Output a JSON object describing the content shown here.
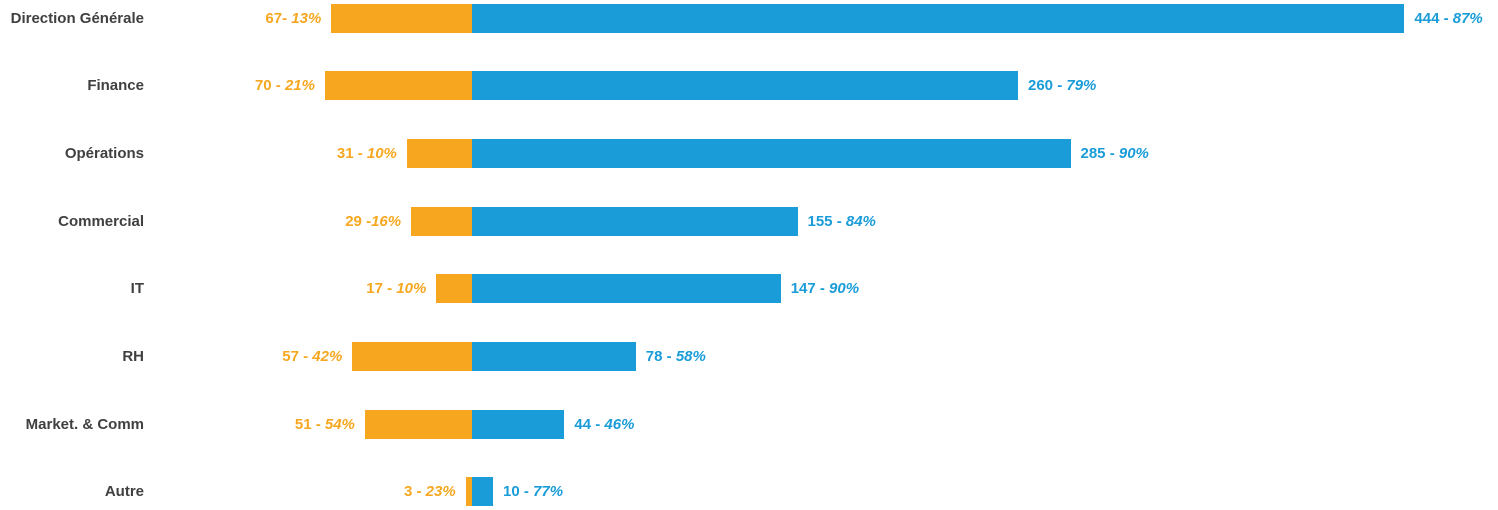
{
  "colors": {
    "left_series": "#F6A71F",
    "right_series": "#1A9CD8",
    "category_text": "#404040",
    "background": "#FFFFFF"
  },
  "chart_data": {
    "type": "bar",
    "orientation": "horizontal-diverging-stacked",
    "title": "",
    "xlabel": "",
    "ylabel": "",
    "legend": "none",
    "axis_labels_visible": false,
    "gridlines": false,
    "categories": [
      "Direction Générale",
      "Finance",
      "Opérations",
      "Commercial",
      "IT",
      "RH",
      "Market. & Comm",
      "Autre"
    ],
    "series": [
      {
        "name": "left-orange-segment",
        "values": [
          67,
          70,
          31,
          29,
          17,
          57,
          51,
          3
        ],
        "percents": [
          "13%",
          "21%",
          "10%",
          "16%",
          "10%",
          "42%",
          "54%",
          "23%"
        ]
      },
      {
        "name": "right-blue-segment",
        "values": [
          444,
          260,
          285,
          155,
          147,
          78,
          44,
          10
        ],
        "percents": [
          "87%",
          "79%",
          "90%",
          "84%",
          "90%",
          "58%",
          "46%",
          "77%"
        ]
      }
    ],
    "rows": [
      {
        "category": "Direction Générale",
        "left": {
          "value": 67,
          "num": "67- ",
          "pct": "13%"
        },
        "right": {
          "value": 444,
          "num": "444 - ",
          "pct": "87%"
        }
      },
      {
        "category": "Finance",
        "left": {
          "value": 70,
          "num": "70 - ",
          "pct": "21%"
        },
        "right": {
          "value": 260,
          "num": "260 - ",
          "pct": "79%"
        }
      },
      {
        "category": "Opérations",
        "left": {
          "value": 31,
          "num": "31 - ",
          "pct": "10%"
        },
        "right": {
          "value": 285,
          "num": "285 - ",
          "pct": "90%"
        }
      },
      {
        "category": "Commercial",
        "left": {
          "value": 29,
          "num": "29 -",
          "pct": "16%"
        },
        "right": {
          "value": 155,
          "num": "155 - ",
          "pct": "84%"
        }
      },
      {
        "category": "IT",
        "left": {
          "value": 17,
          "num": "17 - ",
          "pct": "10%"
        },
        "right": {
          "value": 147,
          "num": "147 - ",
          "pct": "90%"
        }
      },
      {
        "category": "RH",
        "left": {
          "value": 57,
          "num": "57 - ",
          "pct": "42%"
        },
        "right": {
          "value": 78,
          "num": "78 - ",
          "pct": "58%"
        }
      },
      {
        "category": "Market. & Comm",
        "left": {
          "value": 51,
          "num": "51 - ",
          "pct": "54%"
        },
        "right": {
          "value": 44,
          "num": "44 - ",
          "pct": "46%"
        }
      },
      {
        "category": "Autre",
        "left": {
          "value": 3,
          "num": "3 - ",
          "pct": "23%"
        },
        "right": {
          "value": 10,
          "num": "10 - ",
          "pct": "77%"
        }
      }
    ]
  }
}
